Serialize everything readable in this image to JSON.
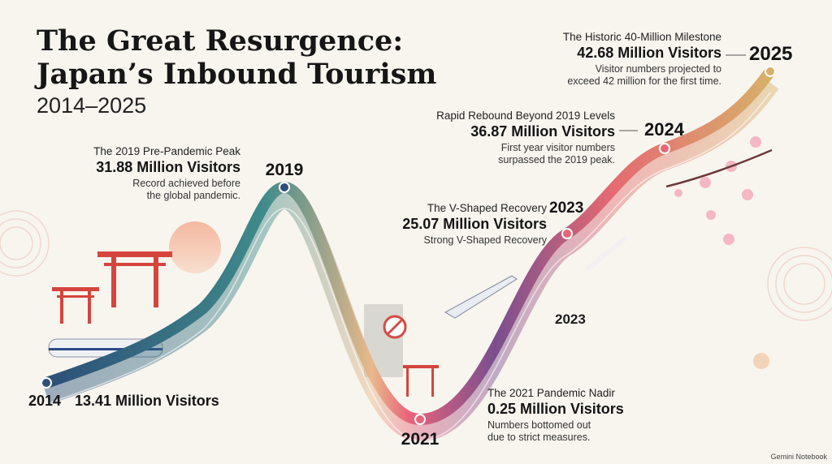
{
  "header": {
    "title_lines": [
      "The Great Resurgence:",
      "Japan’s Inbound Tourism"
    ],
    "subtitle": "2014–2025"
  },
  "milestones": [
    {
      "year": "2014",
      "value": "13.41 Million Visitors"
    },
    {
      "year": "2019",
      "heading": "The 2019 Pre-Pandemic Peak",
      "value": "31.88 Million Visitors",
      "description": [
        "Record achieved before",
        "the global pandemic."
      ]
    },
    {
      "year": "2021",
      "heading": "The 2021 Pandemic Nadir",
      "value": "0.25 Million Visitors",
      "description": [
        "Numbers bottomed out",
        "due to strict measures."
      ]
    },
    {
      "year": "2023",
      "heading": "The V-Shaped Recovery",
      "value": "25.07 Million Visitors",
      "description": [
        "Strong V-Shaped Recovery"
      ]
    },
    {
      "year": "2024",
      "heading": "Rapid Rebound Beyond 2019 Levels",
      "value": "36.87 Million Visitors",
      "description": [
        "First year visitor numbers",
        "surpassed the 2019 peak."
      ]
    },
    {
      "year": "2025",
      "heading": "The Historic 40-Million Milestone",
      "value": "42.68 Million Visitors",
      "description": [
        "Visitor numbers projected to",
        "exceed 42 million for the first time."
      ]
    }
  ],
  "curve_label": "2023",
  "footer": "Gemini Notebook"
}
